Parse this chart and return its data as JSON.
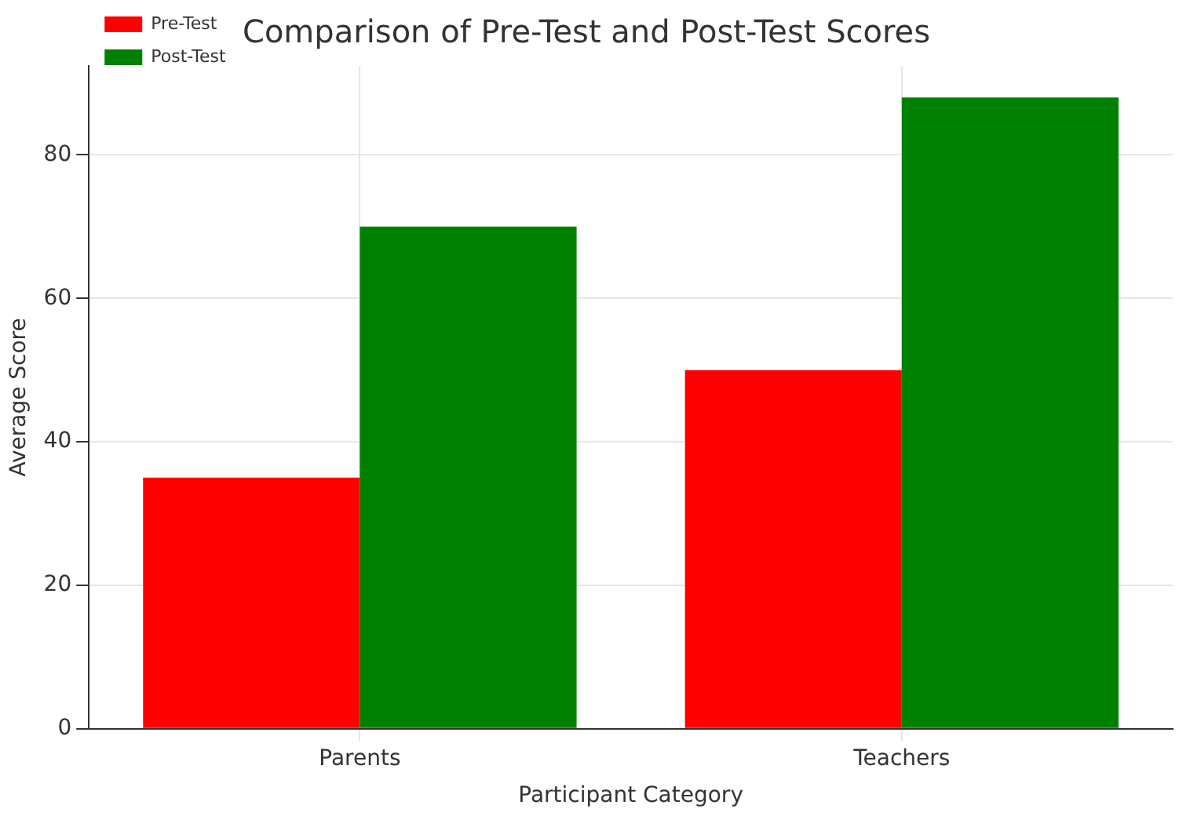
{
  "chart_data": {
    "type": "bar",
    "title": "Comparison of Pre-Test and Post-Test Scores",
    "xlabel": "Participant Category",
    "ylabel": "Average Score",
    "categories": [
      "Parents",
      "Teachers"
    ],
    "series": [
      {
        "name": "Pre-Test",
        "color": "#ff0000",
        "values": [
          35,
          50
        ]
      },
      {
        "name": "Post-Test",
        "color": "#008000",
        "values": [
          70,
          88
        ]
      }
    ],
    "ylim": [
      0,
      92.4
    ],
    "yticks": [
      0,
      20,
      40,
      60,
      80
    ],
    "grid": true,
    "legend": "top left"
  }
}
